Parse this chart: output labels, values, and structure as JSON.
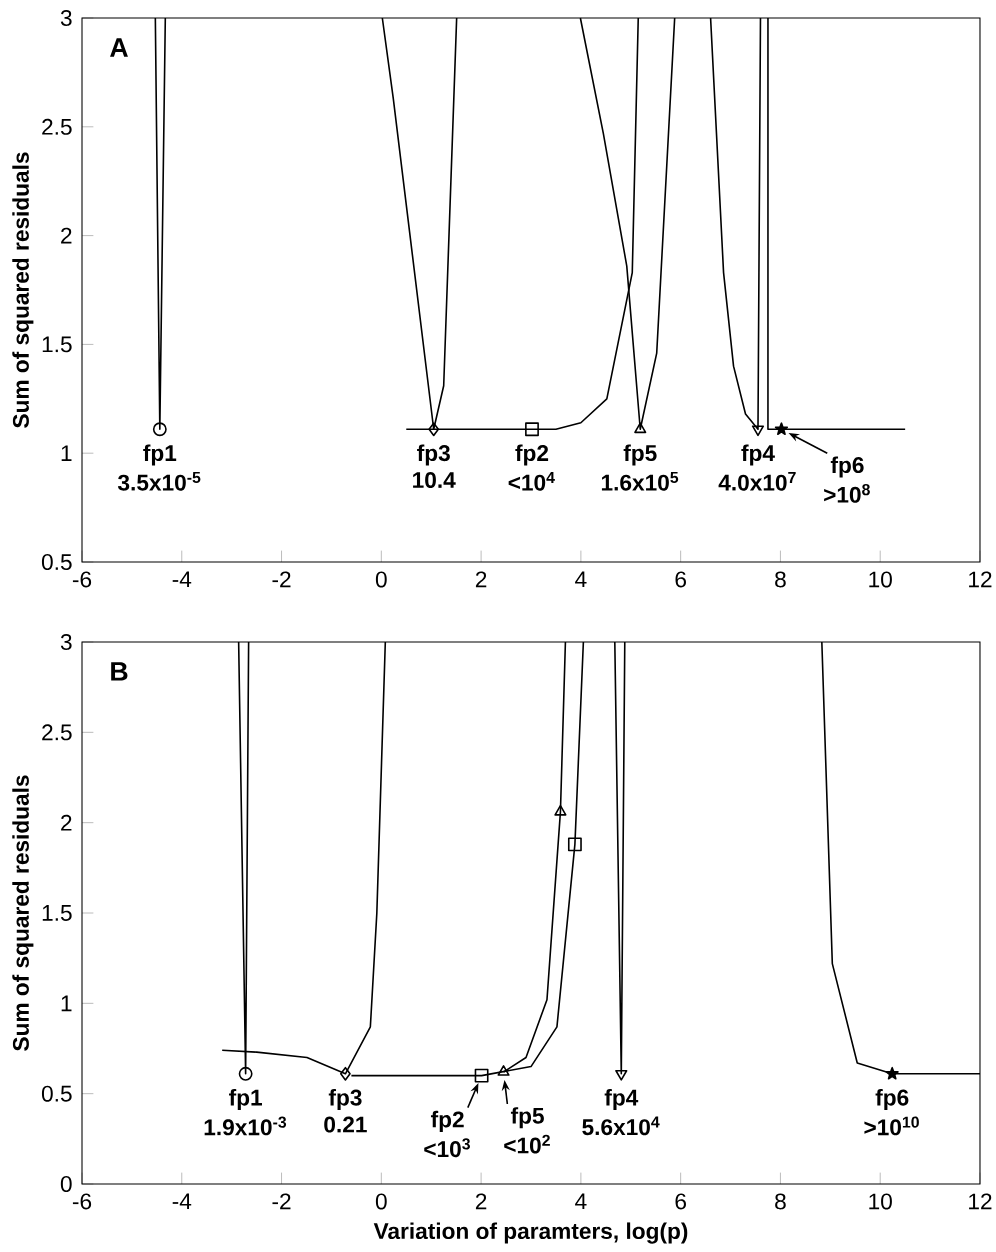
{
  "chart_data": [
    {
      "type": "line",
      "title": "A",
      "ylabel": "Sum of squared residuals",
      "xlim": [
        -6,
        12
      ],
      "xticks": [
        -6,
        -4,
        -2,
        0,
        2,
        4,
        6,
        8,
        10,
        12
      ],
      "ylim": [
        0.5,
        3
      ],
      "yticks": [
        0.5,
        1,
        1.5,
        2,
        2.5,
        3
      ],
      "series": [
        {
          "marker": "none",
          "color": "#000000",
          "x": [
            -4.53,
            -4.44,
            -4.33
          ],
          "values": [
            3,
            1.11,
            3
          ]
        },
        {
          "type": "scatter",
          "marker": "circle",
          "color": "#000000",
          "x": [
            -4.44
          ],
          "values": [
            1.11
          ]
        },
        {
          "marker": "none",
          "color": "#000000",
          "x": [
            0.02,
            0.24,
            1.05,
            1.25,
            1.51
          ],
          "values": [
            3,
            2.63,
            1.11,
            1.31,
            3
          ]
        },
        {
          "type": "scatter",
          "marker": "diamond",
          "color": "#000000",
          "x": [
            1.05
          ],
          "values": [
            1.11
          ]
        },
        {
          "marker": "none",
          "color": "#000000",
          "x": [
            0.5,
            3.02,
            3.5,
            4.0,
            4.52,
            5.03,
            5.15
          ],
          "values": [
            1.11,
            1.11,
            1.11,
            1.14,
            1.25,
            1.83,
            3
          ]
        },
        {
          "type": "scatter",
          "marker": "square",
          "color": "#000000",
          "x": [
            3.02
          ],
          "values": [
            1.11
          ]
        },
        {
          "marker": "none",
          "color": "#000000",
          "x": [
            3.99,
            4.45,
            4.92,
            5.19,
            5.52,
            5.88
          ],
          "values": [
            3,
            2.47,
            1.86,
            1.11,
            1.46,
            3
          ]
        },
        {
          "type": "scatter",
          "marker": "triangle",
          "color": "#000000",
          "x": [
            5.19
          ],
          "values": [
            1.11
          ]
        },
        {
          "marker": "none",
          "color": "#000000",
          "x": [
            6.6,
            6.86,
            7.06,
            7.3,
            7.55,
            7.6
          ],
          "values": [
            3,
            1.83,
            1.4,
            1.18,
            1.11,
            3
          ]
        },
        {
          "type": "scatter",
          "marker": "triangle-down",
          "color": "#000000",
          "x": [
            7.55
          ],
          "values": [
            1.11
          ]
        },
        {
          "marker": "none",
          "color": "#000000",
          "x": [
            7.75,
            7.75,
            10.5
          ],
          "values": [
            3,
            1.11,
            1.11
          ]
        },
        {
          "type": "scatter",
          "marker": "star",
          "color": "#000000",
          "x": [
            8.02
          ],
          "values": [
            1.11
          ]
        }
      ],
      "annotations": [
        {
          "text": "fp1",
          "x": -4.44,
          "y": 1.11
        },
        "3.5x10$^{-5}$",
        {
          "text": "fp3",
          "x": 1.05,
          "y": 1.11
        },
        "10.4",
        {
          "text": "fp2",
          "x": 3.02,
          "y": 1.11
        },
        "<10$^{4}$",
        {
          "text": "fp5",
          "x": 5.19,
          "y": 1.11
        },
        "1.6x10$^{5}$",
        {
          "text": "fp4",
          "x": 7.55,
          "y": 1.11
        },
        "4.0x10$^{7}$",
        {
          "text": "fp6",
          "x": 8.02,
          "y": 1.11
        },
        ">10$^{8}$"
      ]
    },
    {
      "type": "line",
      "title": "B",
      "xlabel": "Variation of paramters, log(p)",
      "ylabel": "Sum of squared residuals",
      "xlim": [
        -6,
        12
      ],
      "xticks": [
        -6,
        -4,
        -2,
        0,
        2,
        4,
        6,
        8,
        10,
        12
      ],
      "ylim": [
        0,
        3
      ],
      "yticks": [
        0,
        0.5,
        1,
        1.5,
        2,
        2.5,
        3
      ],
      "series": [
        {
          "marker": "none",
          "color": "#000000",
          "x": [
            -2.86,
            -2.72,
            -2.66
          ],
          "values": [
            3,
            0.61,
            3
          ]
        },
        {
          "type": "scatter",
          "marker": "circle",
          "color": "#000000",
          "x": [
            -2.72
          ],
          "values": [
            0.61
          ]
        },
        {
          "marker": "none",
          "color": "#000000",
          "x": [
            -3.19,
            -2.5,
            -1.49,
            -0.72,
            -0.22,
            -0.09,
            0.08
          ],
          "values": [
            0.74,
            0.73,
            0.7,
            0.61,
            0.87,
            1.5,
            3
          ]
        },
        {
          "type": "scatter",
          "marker": "diamond",
          "color": "#000000",
          "x": [
            -0.72
          ],
          "values": [
            0.61
          ]
        },
        {
          "marker": "none",
          "color": "#000000",
          "x": [
            -0.6,
            2.01,
            3.0,
            3.52,
            3.88,
            4.05
          ],
          "values": [
            0.6,
            0.6,
            0.65,
            0.87,
            1.88,
            3
          ]
        },
        {
          "type": "scatter",
          "marker": "square",
          "color": "#000000",
          "x": [
            2.01,
            3.88
          ],
          "values": [
            0.6,
            1.88
          ]
        },
        {
          "marker": "none",
          "color": "#000000",
          "x": [
            2.45,
            2.9,
            3.32,
            3.59,
            3.69
          ],
          "values": [
            0.62,
            0.7,
            1.02,
            2.06,
            3
          ]
        },
        {
          "type": "scatter",
          "marker": "triangle",
          "color": "#000000",
          "x": [
            2.45,
            3.59
          ],
          "values": [
            0.62,
            2.06
          ]
        },
        {
          "marker": "none",
          "color": "#000000",
          "x": [
            4.68,
            4.81,
            4.88
          ],
          "values": [
            3,
            0.61,
            3
          ]
        },
        {
          "type": "scatter",
          "marker": "triangle-down",
          "color": "#000000",
          "x": [
            4.81
          ],
          "values": [
            0.61
          ]
        },
        {
          "marker": "none",
          "color": "#000000",
          "x": [
            8.83,
            9.04,
            9.54,
            10.24,
            12
          ],
          "values": [
            3,
            1.22,
            0.67,
            0.61,
            0.61
          ]
        },
        {
          "type": "scatter",
          "marker": "star",
          "color": "#000000",
          "x": [
            10.24
          ],
          "values": [
            0.61
          ]
        }
      ],
      "annotations": [
        {
          "text": "fp1",
          "x": -2.72,
          "y": 0.61
        },
        "1.9x10$^{-3}$",
        {
          "text": "fp3",
          "x": -0.72,
          "y": 0.61
        },
        "0.21",
        {
          "text": "fp2",
          "x": 2.01,
          "y": 0.6
        },
        "<10$^{3}$",
        {
          "text": "fp5",
          "x": 2.45,
          "y": 0.62
        },
        "<10$^{2}$",
        {
          "text": "fp4",
          "x": 4.81,
          "y": 0.61
        },
        "5.6x10$^{4}$",
        {
          "text": "fp6",
          "x": 10.24,
          "y": 0.61
        },
        ">10$^{10}$"
      ]
    }
  ]
}
